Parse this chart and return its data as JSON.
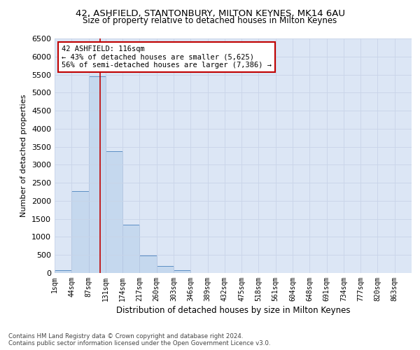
{
  "title": "42, ASHFIELD, STANTONBURY, MILTON KEYNES, MK14 6AU",
  "subtitle": "Size of property relative to detached houses in Milton Keynes",
  "xlabel": "Distribution of detached houses by size in Milton Keynes",
  "ylabel": "Number of detached properties",
  "bar_values": [
    75,
    2275,
    5450,
    3380,
    1330,
    480,
    185,
    75,
    0,
    0,
    0,
    0,
    0,
    0,
    0,
    0,
    0,
    0,
    0,
    0,
    0
  ],
  "bin_labels": [
    "1sqm",
    "44sqm",
    "87sqm",
    "131sqm",
    "174sqm",
    "217sqm",
    "260sqm",
    "303sqm",
    "346sqm",
    "389sqm",
    "432sqm",
    "475sqm",
    "518sqm",
    "561sqm",
    "604sqm",
    "648sqm",
    "691sqm",
    "734sqm",
    "777sqm",
    "820sqm",
    "863sqm"
  ],
  "bar_color": "#c5d8ee",
  "bar_edge_color": "#5b8ec4",
  "marker_line_color": "#c00000",
  "annotation_text": "42 ASHFIELD: 116sqm\n← 43% of detached houses are smaller (5,625)\n56% of semi-detached houses are larger (7,386) →",
  "annotation_box_facecolor": "#ffffff",
  "annotation_box_edgecolor": "#c00000",
  "ylim": [
    0,
    6500
  ],
  "yticks": [
    0,
    500,
    1000,
    1500,
    2000,
    2500,
    3000,
    3500,
    4000,
    4500,
    5000,
    5500,
    6000,
    6500
  ],
  "grid_color": "#c8d4e8",
  "bg_color": "#dce6f5",
  "fig_bg_color": "#ffffff",
  "footer_line1": "Contains HM Land Registry data © Crown copyright and database right 2024.",
  "footer_line2": "Contains public sector information licensed under the Open Government Licence v3.0."
}
